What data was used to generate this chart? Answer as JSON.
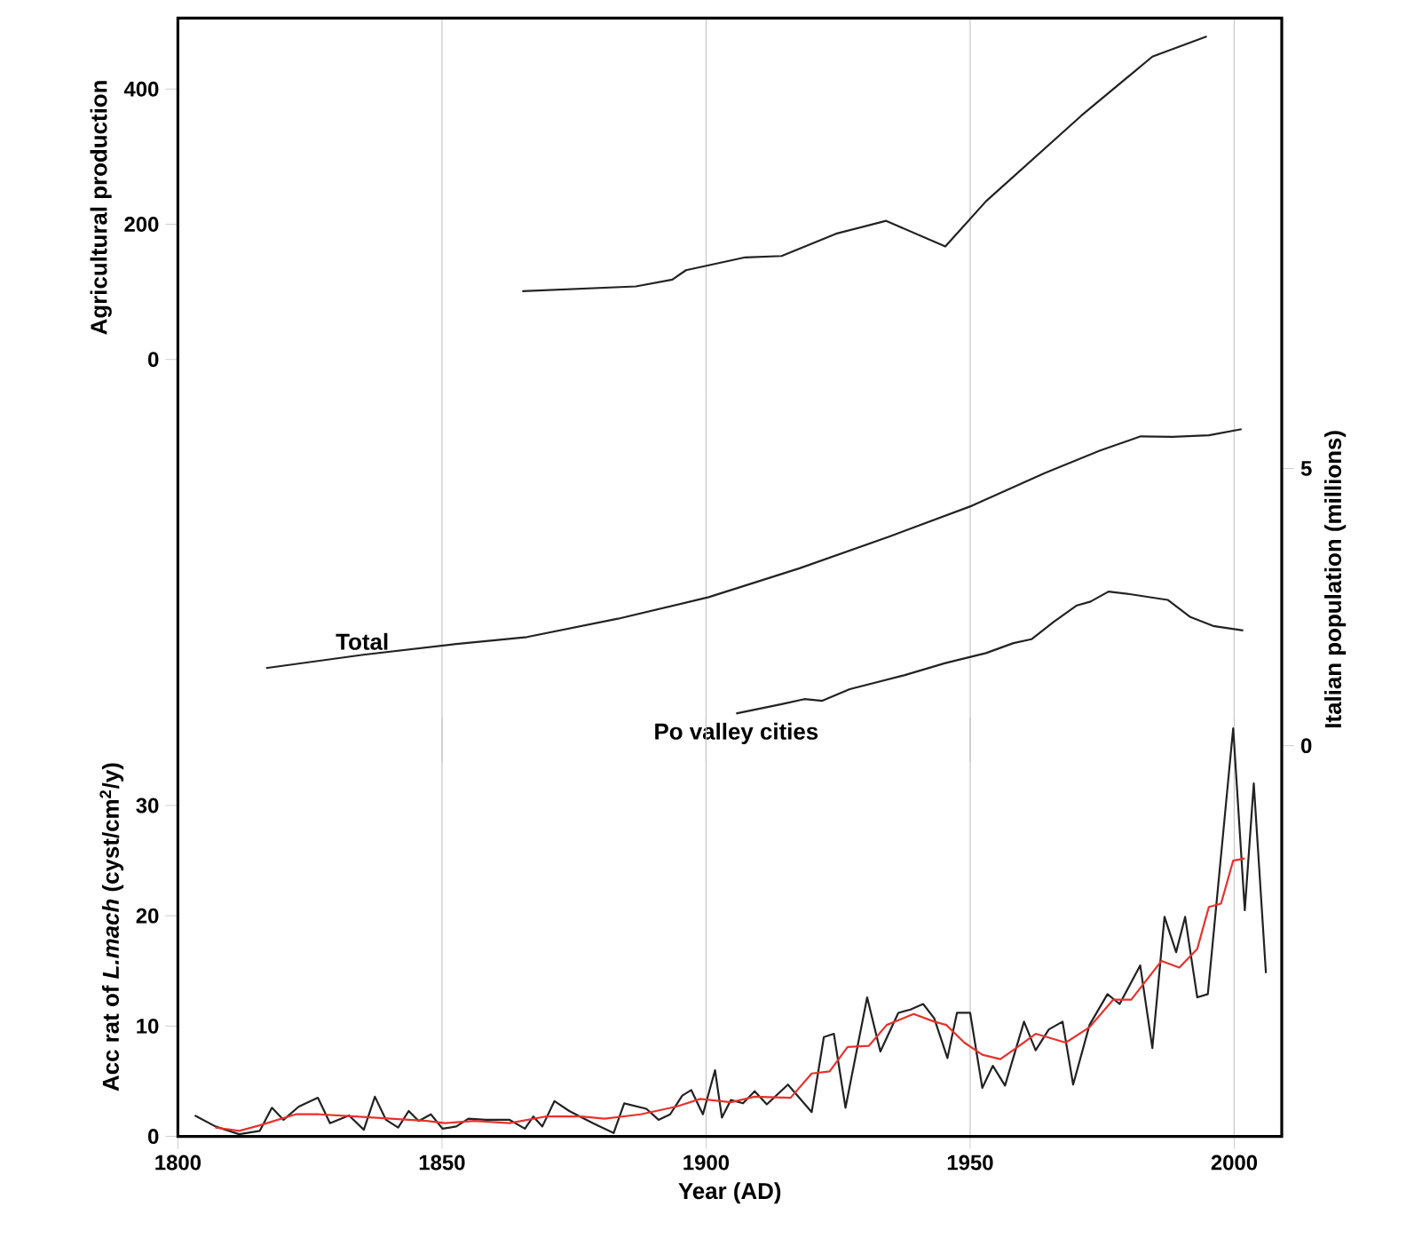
{
  "chart_data": [
    {
      "type": "line",
      "ylabel": "Agricultural production",
      "xlim": [
        1800,
        2009
      ],
      "xticks": [
        1800,
        1850,
        1900,
        1950,
        2000
      ],
      "ylim": [
        -55,
        505
      ],
      "yticks": [
        0,
        200,
        400
      ],
      "tick_labels": "y",
      "grid": "x",
      "series": [
        {
          "color": "#222222",
          "x": [
            1865.2,
            1886.7,
            1893.6,
            1896.2,
            1907.4,
            1914.3,
            1924.6,
            1934.1,
            1945.3,
            1953.0,
            1971.1,
            1984.5,
            1994.8
          ],
          "values": [
            101,
            108,
            118,
            132,
            151,
            153,
            186,
            205,
            167,
            234,
            361,
            448,
            478
          ]
        }
      ]
    },
    {
      "type": "line",
      "y2label": "Italian population (millions)",
      "xlim": [
        1800,
        2009
      ],
      "xticks": [
        1800,
        1850,
        1900,
        1950,
        2000
      ],
      "y2lim": [
        -0.3,
        6.3
      ],
      "y2ticks": [
        0,
        5
      ],
      "tick_labels": "y",
      "grid": "x",
      "series": [
        {
          "name": "Total",
          "color": "#222222",
          "axis": "y2",
          "x": [
            1816.7,
            1835.1,
            1852.3,
            1866.1,
            1883.3,
            1900.5,
            1917.7,
            1934.9,
            1950.4,
            1964.2,
            1974.5,
            1982.3,
            1988.3,
            1995.2,
            2001.4
          ],
          "values": [
            1.4,
            1.64,
            1.83,
            1.96,
            2.29,
            2.68,
            3.2,
            3.78,
            4.33,
            4.92,
            5.32,
            5.58,
            5.57,
            5.6,
            5.71
          ]
        },
        {
          "name": "Po valley cities",
          "color": "#222222",
          "axis": "y2",
          "x": [
            1905.7,
            1914.3,
            1918.6,
            1922.0,
            1927.2,
            1937.5,
            1945.3,
            1953.0,
            1958.2,
            1961.6,
            1965.9,
            1970.2,
            1972.8,
            1976.2,
            1980.5,
            1987.4,
            1991.7,
            1996.0,
            2001.7
          ],
          "values": [
            0.58,
            0.75,
            0.84,
            0.81,
            1.02,
            1.27,
            1.49,
            1.67,
            1.85,
            1.92,
            2.24,
            2.53,
            2.6,
            2.78,
            2.73,
            2.63,
            2.32,
            2.16,
            2.08
          ]
        }
      ]
    },
    {
      "type": "line",
      "xlabel": "Year (AD)",
      "ylabel": "Acc rat of *L.mach* (cyst/cm$^{2}$/y)",
      "xlim": [
        1800,
        2009
      ],
      "xticks": [
        1800,
        1850,
        1900,
        1950,
        2000
      ],
      "ylim": [
        0,
        38
      ],
      "yticks": [
        0,
        10,
        20,
        30
      ],
      "grid": "x",
      "series": [
        {
          "color": "#222222",
          "x": [
            1803.2,
            1807.1,
            1811.6,
            1815.5,
            1817.8,
            1820.0,
            1822.9,
            1826.5,
            1828.8,
            1832.4,
            1835.2,
            1837.3,
            1839.4,
            1841.7,
            1843.7,
            1845.6,
            1847.9,
            1850.1,
            1852.7,
            1855.0,
            1858.3,
            1862.8,
            1865.7,
            1867.3,
            1869.0,
            1871.3,
            1874.1,
            1878.6,
            1882.5,
            1884.5,
            1888.7,
            1891.0,
            1893.2,
            1895.5,
            1897.2,
            1899.4,
            1901.7,
            1903.0,
            1904.7,
            1907.0,
            1909.2,
            1911.5,
            1915.5,
            1920.0,
            1922.3,
            1924.2,
            1926.4,
            1930.5,
            1933.0,
            1936.4,
            1938.7,
            1941.1,
            1943.2,
            1945.7,
            1947.5,
            1950.0,
            1952.3,
            1954.3,
            1956.6,
            1960.2,
            1962.4,
            1964.9,
            1967.5,
            1969.5,
            1972.6,
            1976.0,
            1978.3,
            1982.2,
            1984.5,
            1986.8,
            1989.0,
            1990.7,
            1993.0,
            1995.0,
            1999.8,
            2002.0,
            2003.7,
            2006.0
          ],
          "values": [
            1.9,
            0.9,
            0.2,
            0.5,
            2.6,
            1.5,
            2.7,
            3.5,
            1.2,
            1.9,
            0.6,
            3.6,
            1.5,
            0.8,
            2.3,
            1.4,
            2.0,
            0.7,
            0.9,
            1.6,
            1.5,
            1.5,
            0.7,
            1.8,
            0.9,
            3.2,
            2.3,
            1.2,
            0.3,
            3.0,
            2.5,
            1.5,
            2.0,
            3.7,
            4.2,
            2.0,
            6.0,
            1.7,
            3.3,
            3.0,
            4.1,
            2.9,
            4.7,
            2.2,
            9.0,
            9.3,
            2.6,
            12.6,
            7.7,
            11.2,
            11.5,
            12.0,
            10.7,
            7.1,
            11.2,
            11.2,
            4.4,
            6.4,
            4.6,
            10.4,
            7.8,
            9.7,
            10.4,
            4.7,
            10.1,
            12.9,
            12.0,
            15.5,
            8.0,
            19.9,
            16.7,
            19.9,
            12.6,
            12.9,
            37.0,
            20.5,
            32.0,
            14.8
          ]
        },
        {
          "color": "#e8312b",
          "x": [
            1807.1,
            1811.6,
            1815.5,
            1822.3,
            1826.8,
            1833.6,
            1840.3,
            1847.1,
            1850.5,
            1856.1,
            1862.8,
            1869.6,
            1876.3,
            1880.8,
            1887.6,
            1894.4,
            1898.9,
            1904.7,
            1909.2,
            1916.0,
            1920.0,
            1923.4,
            1926.8,
            1930.8,
            1934.2,
            1939.3,
            1943.2,
            1945.5,
            1948.9,
            1952.3,
            1955.7,
            1959.0,
            1962.4,
            1968.1,
            1972.6,
            1977.1,
            1980.5,
            1986.2,
            1989.6,
            1993.0,
            1995.2,
            1997.5,
            1999.8,
            2002.0
          ],
          "values": [
            0.8,
            0.5,
            1.0,
            2.0,
            2.0,
            1.8,
            1.6,
            1.4,
            1.2,
            1.4,
            1.2,
            1.8,
            1.8,
            1.6,
            2.0,
            2.7,
            3.4,
            3.1,
            3.6,
            3.5,
            5.7,
            5.9,
            8.1,
            8.2,
            10.1,
            11.1,
            10.4,
            10.1,
            8.5,
            7.4,
            7.0,
            8.1,
            9.3,
            8.5,
            9.9,
            12.4,
            12.4,
            15.9,
            15.3,
            17.0,
            20.8,
            21.1,
            25.0,
            25.2
          ]
        }
      ]
    }
  ]
}
